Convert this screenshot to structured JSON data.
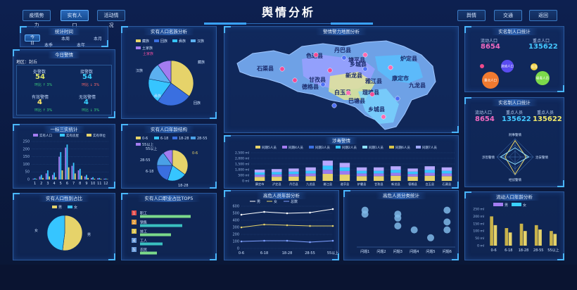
{
  "header": {
    "title": "舆情分析",
    "nav_left": [
      "疫情势力",
      "实有人口",
      "活动情况"
    ],
    "nav_right": [
      "舆情",
      "交通",
      "返回"
    ]
  },
  "time_stats": {
    "title": "统计时间",
    "tabs": [
      "今日",
      "本周",
      "本月",
      "本季",
      "本年"
    ]
  },
  "today_alert": {
    "title": "今日警情",
    "district": "地区：封丘",
    "items": [
      {
        "label": "处警数",
        "value": "54",
        "ratio": "环比 ↑ 3%"
      },
      {
        "label": "接警数",
        "value": "54",
        "ratio": "环比 ↓ 3%"
      },
      {
        "label": "有效警情",
        "value": "4",
        "ratio": "环比 ↑ 3%"
      },
      {
        "label": "无效警情",
        "value": "4",
        "ratio": "环比 ↓ 3%"
      }
    ]
  },
  "three_real": {
    "title": "一标三实统计",
    "legend": [
      "实有人口",
      "实有房屋",
      "实有单位"
    ],
    "y_ticks": [
      "250",
      "200",
      "150",
      "100",
      "50",
      "0"
    ],
    "x_ticks": [
      "1",
      "2",
      "3",
      "4",
      "5",
      "6",
      "7",
      "8",
      "9",
      "10",
      "11",
      "12"
    ]
  },
  "gender": {
    "title": "实有人口性别占比",
    "legend": [
      "男",
      "女"
    ],
    "labels": [
      "女",
      "男"
    ]
  },
  "ethnic": {
    "title": "实有人口名族分析",
    "legend": [
      "藏族",
      "回族",
      "彝族",
      "汉族",
      "土家族"
    ],
    "labels": [
      "土家族",
      "汉族",
      "藏族",
      "回族",
      "彝族"
    ]
  },
  "age_structure": {
    "title": "实有人口年龄结构",
    "legend": [
      "0-6",
      "6-18",
      "18-28",
      "28-55",
      "55以上"
    ],
    "labels": [
      "0-6",
      "28-55",
      "6-18",
      "18-28",
      "55以上"
    ]
  },
  "job_top5": {
    "title": "实有人口职业占比TOP5",
    "rows": [
      {
        "rank": "1",
        "name": "职工"
      },
      {
        "rank": "2",
        "name": "销售"
      },
      {
        "rank": "3",
        "name": "技工"
      },
      {
        "rank": "4",
        "name": "工人"
      },
      {
        "rank": "5",
        "name": "农民"
      }
    ]
  },
  "map": {
    "title": "警情警力地图分析",
    "regions": [
      "丹巴县",
      "色达县",
      "乡城县",
      "塘平县",
      "石渠县",
      "炉定县",
      "德格县",
      "甘孜县",
      "康定市",
      "理塘县",
      "新龙县",
      "九龙县",
      "白玉县",
      "巴塘县",
      "雅江县",
      "乡城县"
    ]
  },
  "drug_alert": {
    "title": "涉毒警情",
    "legend": [
      "同期5人员",
      "同期4人员",
      "同期3人员",
      "同期2人员",
      "同期1人员",
      "同期6人员",
      "同期7人员"
    ],
    "y_ticks": [
      "2,500 ml",
      "2,000 ml",
      "1,500 ml",
      "1,000 ml",
      "500 ml",
      "0 ml"
    ],
    "x_ticks": [
      "康定市",
      "泸定县",
      "丹巴县",
      "九龙县",
      "雅江县",
      "道孚县",
      "炉霍县",
      "甘孜县",
      "新龙县",
      "德格县",
      "白玉县",
      "石渠县"
    ]
  },
  "high_risk_age": {
    "title": "高危人员年龄分析",
    "legend": [
      "男",
      "女",
      "总数"
    ],
    "y_ticks": [
      "600",
      "500",
      "400",
      "300",
      "200",
      "100",
      "0"
    ],
    "x_ticks": [
      "0-6",
      "6-18",
      "18-28",
      "28-55",
      "55以上"
    ]
  },
  "high_risk_type": {
    "title": "高危人员分类统计",
    "x_ticks": [
      "问题1",
      "问题2",
      "问题3",
      "问题4",
      "问题5",
      "问题6"
    ]
  },
  "real_pop": {
    "title": "实名制人口统计",
    "stats": [
      {
        "label": "流动人口",
        "value": "8654"
      },
      {
        "label": "重点人口",
        "value": "135622"
      }
    ],
    "bubbles": [
      "流动人口",
      "党员",
      "重点人口",
      "吸毒人员",
      "涉黑"
    ]
  },
  "floating_stats": {
    "title": "实名制人口统计",
    "stats": [
      {
        "label": "流动人口",
        "value": "8654"
      },
      {
        "label": "重点人员",
        "value": "135622"
      },
      {
        "label": "重点人员",
        "value": "135622"
      }
    ],
    "radar_labels": [
      "刑事警情",
      "治安警情",
      "经侦警情",
      "涉恐警情"
    ]
  },
  "floating_age": {
    "title": "流动人口年龄分析",
    "legend": [
      "男",
      "女"
    ],
    "y_ticks": [
      "250 ml",
      "200 ml",
      "150 ml",
      "100 ml",
      "50 ml",
      "0 ml"
    ],
    "x_ticks": [
      "0-6",
      "6-18",
      "18-28",
      "28-55",
      "55以上"
    ]
  },
  "chart_data": [
    {
      "type": "bar",
      "title": "一标三实统计",
      "categories": [
        "1",
        "2",
        "3",
        "4",
        "5",
        "6",
        "7",
        "8",
        "9",
        "10",
        "11",
        "12"
      ],
      "series": [
        {
          "name": "实有人口",
          "values": [
            5,
            20,
            40,
            30,
            150,
            210,
            90,
            60,
            20,
            10,
            8,
            5
          ]
        },
        {
          "name": "实有房屋",
          "values": [
            8,
            30,
            60,
            45,
            180,
            230,
            110,
            70,
            30,
            15,
            10,
            6
          ]
        },
        {
          "name": "实有单位",
          "values": [
            3,
            10,
            20,
            15,
            60,
            80,
            40,
            25,
            10,
            5,
            4,
            2
          ]
        }
      ],
      "ylim": [
        0,
        250
      ]
    },
    {
      "type": "pie",
      "title": "实有人口性别占比",
      "categories": [
        "男",
        "女"
      ],
      "values": [
        52,
        48
      ]
    },
    {
      "type": "pie",
      "title": "实有人口名族分析",
      "categories": [
        "藏族",
        "回族",
        "彝族",
        "汉族",
        "土家族"
      ],
      "values": [
        35,
        25,
        18,
        12,
        10
      ]
    },
    {
      "type": "pie",
      "title": "实有人口年龄结构",
      "categories": [
        "0-6",
        "6-18",
        "18-28",
        "28-55",
        "55以上"
      ],
      "values": [
        35,
        20,
        20,
        15,
        10
      ]
    },
    {
      "type": "bar",
      "title": "实有人口职业占比TOP5",
      "categories": [
        "职工",
        "销售",
        "技工",
        "工人",
        "农民"
      ],
      "values": [
        90,
        75,
        55,
        40,
        30
      ]
    },
    {
      "type": "bar",
      "title": "涉毒警情",
      "categories": [
        "康定市",
        "泸定县",
        "丹巴县",
        "九龙县",
        "雅江县",
        "道孚县",
        "炉霍县",
        "甘孜县",
        "新龙县",
        "德格县",
        "白玉县",
        "石渠县"
      ],
      "values": [
        1000,
        1050,
        1100,
        1200,
        1800,
        1600,
        1200,
        1200,
        1300,
        1100,
        1300,
        1200
      ],
      "ylim": [
        0,
        2500
      ]
    },
    {
      "type": "line",
      "title": "高危人员年龄分析",
      "categories": [
        "0-6",
        "6-18",
        "18-28",
        "28-55",
        "55以上"
      ],
      "series": [
        {
          "name": "男",
          "values": [
            480,
            520,
            500,
            510,
            560
          ]
        },
        {
          "name": "女",
          "values": [
            300,
            340,
            330,
            320,
            320
          ]
        },
        {
          "name": "总数",
          "values": [
            100,
            110,
            110,
            90,
            110
          ]
        }
      ],
      "ylim": [
        0,
        600
      ]
    },
    {
      "type": "scatter",
      "title": "高危人员分类统计",
      "categories": [
        "问题1",
        "问题2",
        "问题3",
        "问题4",
        "问题5",
        "问题6"
      ],
      "series": [
        {
          "name": "A",
          "values": [
            90,
            null,
            80,
            40,
            20,
            90
          ]
        },
        {
          "name": "B",
          "values": [
            80,
            null,
            70,
            null,
            null,
            60
          ]
        },
        {
          "name": "C",
          "values": [
            null,
            null,
            50,
            null,
            null,
            40
          ]
        }
      ]
    },
    {
      "type": "bar",
      "title": "流动人口年龄分析",
      "categories": [
        "0-6",
        "6-18",
        "18-28",
        "28-55",
        "55以上"
      ],
      "series": [
        {
          "name": "男",
          "values": [
            200,
            120,
            150,
            140,
            100
          ]
        },
        {
          "name": "女",
          "values": [
            140,
            90,
            100,
            110,
            80
          ]
        }
      ],
      "ylim": [
        0,
        250
      ]
    }
  ],
  "colors": {
    "cyan": "#36c5ff",
    "yellow": "#e6d36a",
    "purple": "#a37cf0",
    "blue": "#3a6fe0",
    "green": "#35d27f",
    "pink": "#f04da0"
  }
}
